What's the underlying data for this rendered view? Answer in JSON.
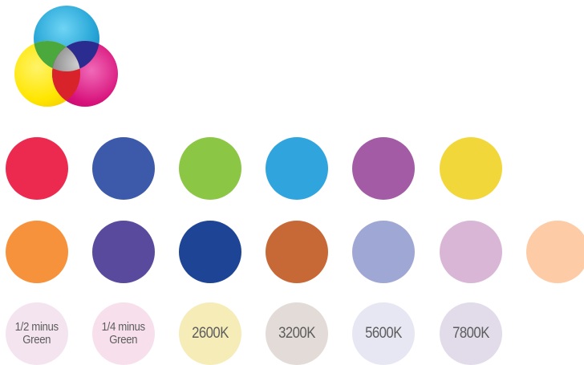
{
  "logo": {
    "icon": "cmy-color-wheel-icon",
    "colors": {
      "cyan": "#2aa8d8",
      "magenta": "#d8127b",
      "yellow": "#ffe600"
    }
  },
  "swatch_rows": [
    {
      "swatches": [
        {
          "color": "#ec2a50"
        },
        {
          "color": "#3d5aaa"
        },
        {
          "color": "#8cc645"
        },
        {
          "color": "#2fa4dd"
        },
        {
          "color": "#a45ba5"
        },
        {
          "color": "#f2d73b"
        }
      ]
    },
    {
      "swatches": [
        {
          "color": "#f6923b"
        },
        {
          "color": "#5a4a9e"
        },
        {
          "color": "#1e4495"
        },
        {
          "color": "#c76936"
        },
        {
          "color": "#9fa7d5"
        },
        {
          "color": "#d9b6d6"
        },
        {
          "color": "#fdcba6"
        }
      ]
    },
    {
      "swatches": [
        {
          "color": "#f4e4ef",
          "label": "1/2 minus\nGreen"
        },
        {
          "color": "#f7e0ec",
          "label": "1/4 minus\nGreen"
        },
        {
          "color": "#f6ecb8",
          "label": "2600K"
        },
        {
          "color": "#e2dbd7",
          "label": "3200K"
        },
        {
          "color": "#e6e7f2",
          "label": "5600K"
        },
        {
          "color": "#e1dbea",
          "label": "7800K"
        }
      ]
    }
  ]
}
